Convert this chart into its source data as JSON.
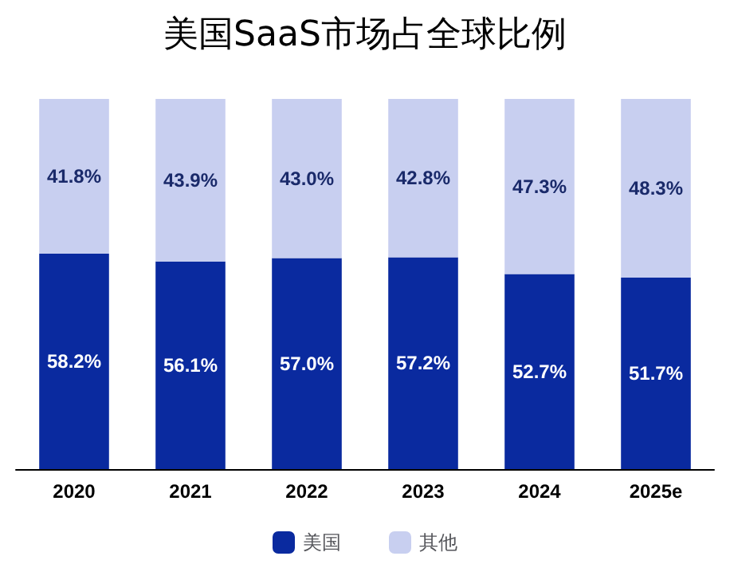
{
  "chart_data": {
    "type": "bar",
    "title": "美国SaaS市场占全球比例",
    "categories": [
      "2020",
      "2021",
      "2022",
      "2023",
      "2024",
      "2025e"
    ],
    "stacked": true,
    "ylim": [
      0,
      100
    ],
    "tick_labels": "x",
    "legend": "bottom",
    "series": [
      {
        "name": "美国",
        "color": "#0a2a9f",
        "values": [
          58.2,
          56.1,
          57.0,
          57.2,
          52.7,
          51.7
        ],
        "value_labels": [
          "58.2%",
          "56.1%",
          "57.0%",
          "57.2%",
          "52.7%",
          "51.7%"
        ]
      },
      {
        "name": "其他",
        "color": "#c8cff0",
        "values": [
          41.8,
          43.9,
          43.0,
          42.8,
          47.3,
          48.3
        ],
        "value_labels": [
          "41.8%",
          "43.9%",
          "43.0%",
          "42.8%",
          "47.3%",
          "48.3%"
        ]
      }
    ]
  }
}
